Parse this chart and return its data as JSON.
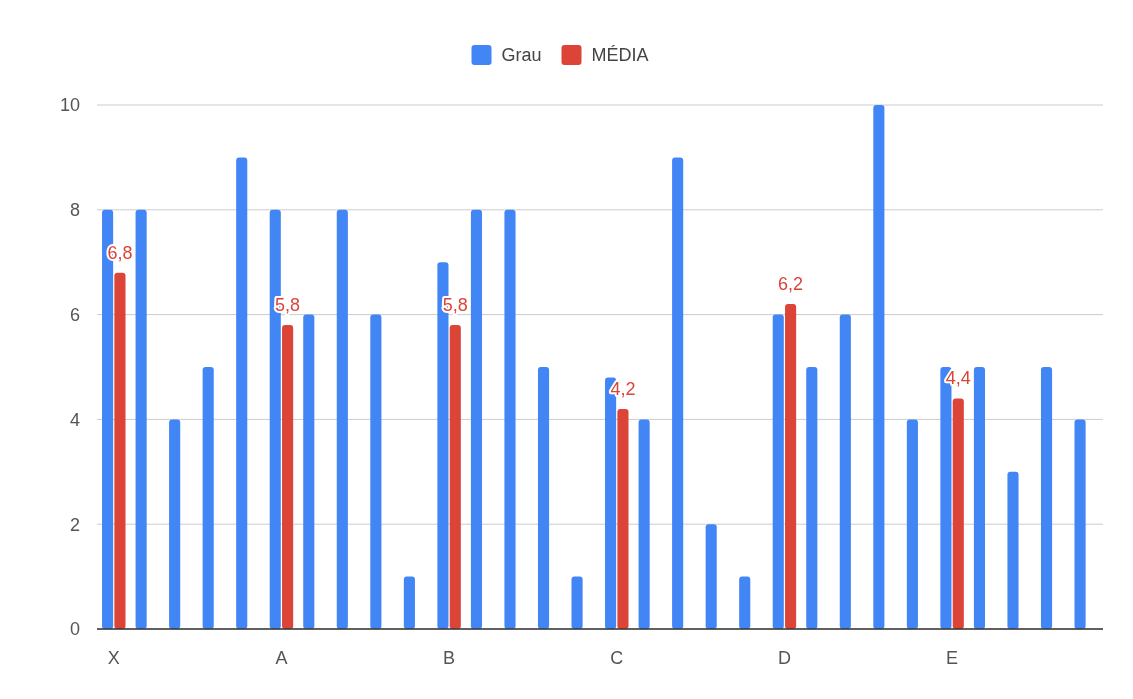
{
  "chart_data": {
    "type": "bar",
    "categories": [
      "X",
      null,
      null,
      null,
      null,
      "A",
      null,
      null,
      null,
      null,
      "B",
      null,
      null,
      null,
      null,
      "C",
      null,
      null,
      null,
      null,
      "D",
      null,
      null,
      null,
      null,
      "E",
      null,
      null,
      null,
      null
    ],
    "series": [
      {
        "name": "Grau",
        "color": "#4285f4",
        "values": [
          8,
          8,
          4,
          5,
          9,
          8,
          6,
          8,
          6,
          1,
          7,
          8,
          8,
          5,
          1,
          4.8,
          4,
          9,
          2,
          1,
          6,
          5,
          6,
          10,
          4,
          5,
          5,
          3,
          5,
          4
        ]
      },
      {
        "name": "MÉDIA",
        "color": "#db4437",
        "values": [
          6.8,
          null,
          null,
          null,
          null,
          5.8,
          null,
          null,
          null,
          null,
          5.8,
          null,
          null,
          null,
          null,
          4.2,
          null,
          null,
          null,
          null,
          6.2,
          null,
          null,
          null,
          null,
          4.4,
          null,
          null,
          null,
          null
        ],
        "value_labels": [
          "6,8",
          null,
          null,
          null,
          null,
          "5,8",
          null,
          null,
          null,
          null,
          "5,8",
          null,
          null,
          null,
          null,
          "4,2",
          null,
          null,
          null,
          null,
          "6,2",
          null,
          null,
          null,
          null,
          "4,4",
          null,
          null,
          null,
          null
        ]
      }
    ],
    "ylim": [
      0,
      10
    ],
    "yticks": [
      0,
      2,
      4,
      6,
      8,
      10
    ],
    "grid": "y",
    "legend": "top"
  }
}
